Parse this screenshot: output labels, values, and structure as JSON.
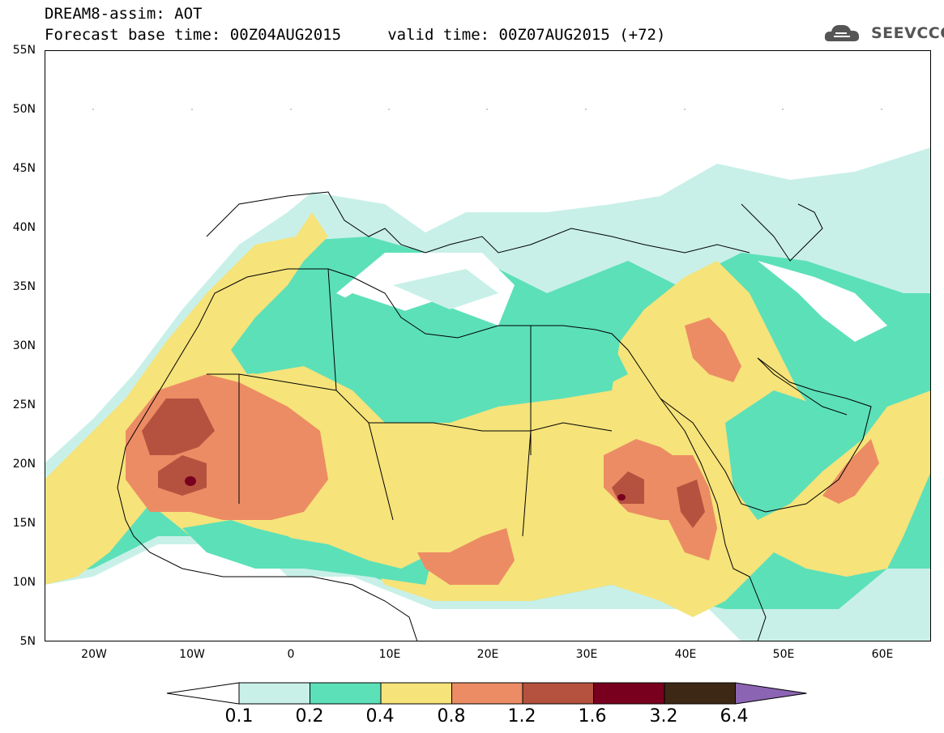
{
  "title": {
    "line1": "DREAM8-assim: AOT",
    "line2": "Forecast base time: 00Z04AUG2015     valid time: 00Z07AUG2015 (+72)"
  },
  "logo": {
    "text": "SEEVCCC",
    "icon": "cloud-logo-icon"
  },
  "map": {
    "lat_range": [
      5,
      55
    ],
    "lon_range": [
      -25,
      65
    ],
    "lat_ticks": [
      "55N",
      "50N",
      "45N",
      "40N",
      "35N",
      "30N",
      "25N",
      "20N",
      "15N",
      "10N",
      "5N"
    ],
    "lon_ticks": [
      "20W",
      "10W",
      "0",
      "10E",
      "20E",
      "30E",
      "40E",
      "50E",
      "60E"
    ]
  },
  "colorbar": {
    "levels": [
      "0.1",
      "0.2",
      "0.4",
      "0.8",
      "1.2",
      "1.6",
      "3.2",
      "6.4"
    ],
    "colors": [
      "#ffffff",
      "#c8f0e8",
      "#5ce0b8",
      "#f6e37a",
      "#ec8c64",
      "#b5523f",
      "#78001e",
      "#3c2814",
      "#8c64b4"
    ]
  }
}
